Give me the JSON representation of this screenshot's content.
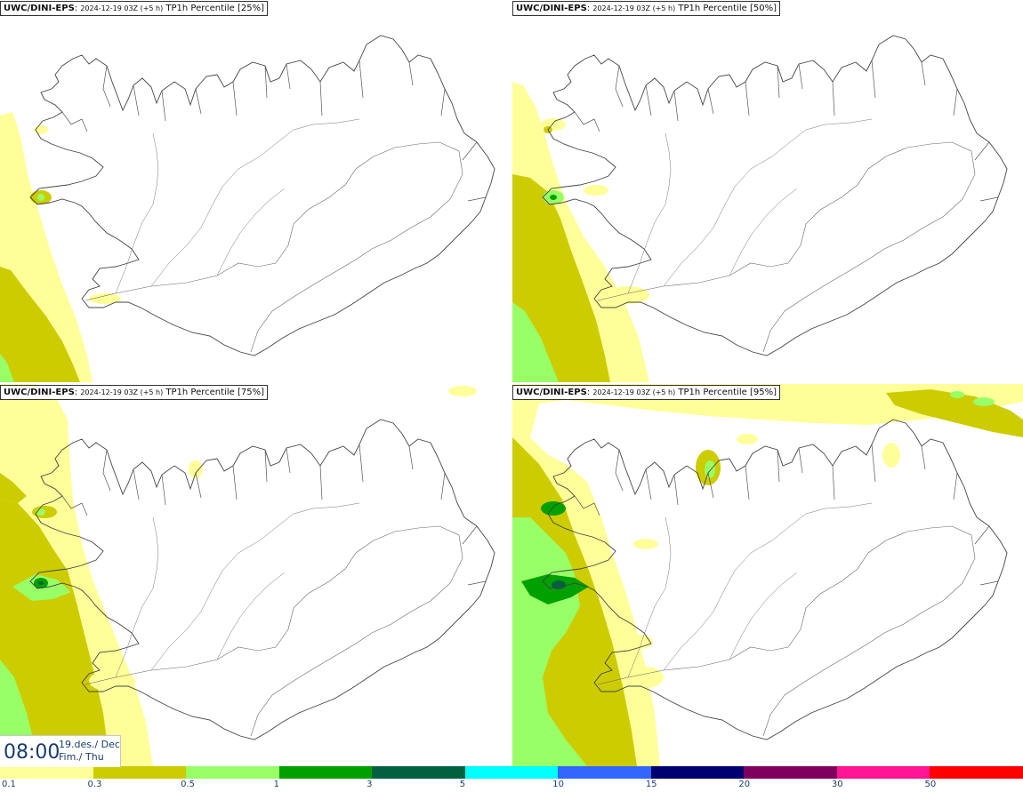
{
  "panels": [
    {
      "model": "UWC/DINI-EPS",
      "run": "2024-12-19 03Z (+5 h)",
      "field": "TP1h Percentile [25%]"
    },
    {
      "model": "UWC/DINI-EPS",
      "run": "2024-12-19 03Z (+5 h)",
      "field": "TP1h Percentile [50%]"
    },
    {
      "model": "UWC/DINI-EPS",
      "run": "2024-12-19 03Z (+5 h)",
      "field": "TP1h Percentile [75%]"
    },
    {
      "model": "UWC/DINI-EPS",
      "run": "2024-12-19 03Z (+5 h)",
      "field": "TP1h Percentile [95%]"
    }
  ],
  "valid_time": {
    "time": "08:00",
    "date": "19.des./ Dec",
    "day": "Fim./ Thu"
  },
  "legend": {
    "colors": [
      "#ffff99",
      "#cccc00",
      "#99ff66",
      "#00a000",
      "#006040",
      "#00ffff",
      "#3366ff",
      "#000070",
      "#800060",
      "#ff1493",
      "#ff0000"
    ],
    "ticks": [
      "0.1",
      "0.3",
      "0.5",
      "1",
      "3",
      "5",
      "10",
      "15",
      "20",
      "30",
      "50"
    ]
  }
}
